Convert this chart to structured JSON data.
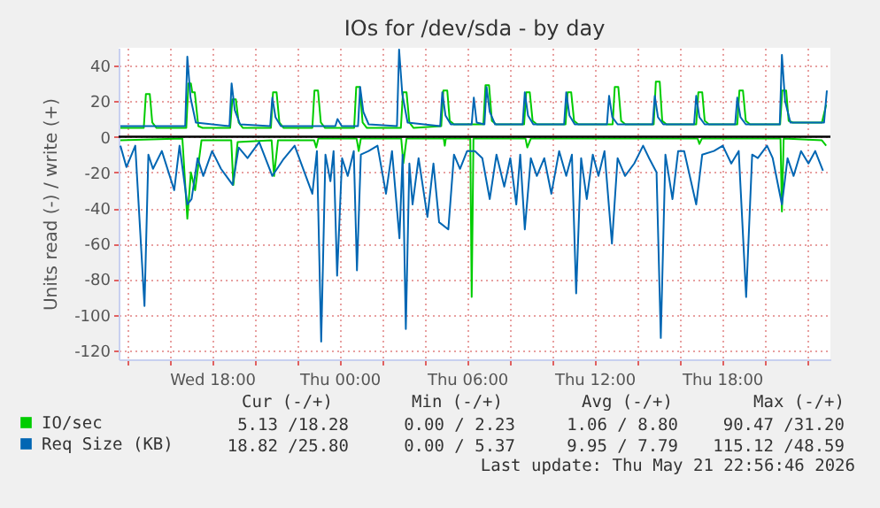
{
  "chart_data": {
    "type": "line",
    "title": "IOs for /dev/sda - by day",
    "ylabel": "Units read (-) / write (+)",
    "xlim": [
      "2026-05-20T13:36",
      "2026-05-21T23:06"
    ],
    "ylim": [
      -125,
      50
    ],
    "xticks": [
      {
        "value": "2026-05-20T14:00",
        "label": null
      },
      {
        "value": "2026-05-20T16:00",
        "label": null
      },
      {
        "value": "2026-05-20T18:00",
        "label": "Wed 18:00"
      },
      {
        "value": "2026-05-20T20:00",
        "label": null
      },
      {
        "value": "2026-05-20T22:00",
        "label": null
      },
      {
        "value": "2026-05-21T00:00",
        "label": "Thu 00:00"
      },
      {
        "value": "2026-05-21T02:00",
        "label": null
      },
      {
        "value": "2026-05-21T04:00",
        "label": null
      },
      {
        "value": "2026-05-21T06:00",
        "label": "Thu 06:00"
      },
      {
        "value": "2026-05-21T08:00",
        "label": null
      },
      {
        "value": "2026-05-21T10:00",
        "label": null
      },
      {
        "value": "2026-05-21T12:00",
        "label": "Thu 12:00"
      },
      {
        "value": "2026-05-21T14:00",
        "label": null
      },
      {
        "value": "2026-05-21T16:00",
        "label": null
      },
      {
        "value": "2026-05-21T18:00",
        "label": "Thu 18:00"
      },
      {
        "value": "2026-05-21T20:00",
        "label": null
      },
      {
        "value": "2026-05-21T22:00",
        "label": null
      }
    ],
    "yticks": [
      -120,
      -100,
      -80,
      -60,
      -40,
      -20,
      0,
      20,
      40
    ],
    "grid": true,
    "legend": "bottom left",
    "ref_lines": [
      {
        "axis": "y",
        "value": 0,
        "color": "#000000"
      }
    ],
    "series": [
      {
        "name": "IO/sec",
        "color": "#00cc00",
        "x": [
          "2026-05-20T13:41",
          "2026-05-20T14:47",
          "2026-05-20T14:53",
          "2026-05-20T15:04",
          "2026-05-20T15:11",
          "2026-05-20T15:23",
          "2026-05-20T16:47",
          "2026-05-20T16:53",
          "2026-05-20T17:00",
          "2026-05-20T17:04",
          "2026-05-20T17:11",
          "2026-05-20T17:21",
          "2026-05-20T17:33",
          "2026-05-20T18:51",
          "2026-05-20T18:57",
          "2026-05-20T19:07",
          "2026-05-20T19:15",
          "2026-05-20T19:27",
          "2026-05-20T20:46",
          "2026-05-20T20:52",
          "2026-05-20T21:02",
          "2026-05-20T21:10",
          "2026-05-20T21:22",
          "2026-05-20T22:43",
          "2026-05-20T22:49",
          "2026-05-20T22:59",
          "2026-05-20T23:07",
          "2026-05-20T23:19",
          "2026-05-21T00:41",
          "2026-05-21T00:47",
          "2026-05-21T00:57",
          "2026-05-21T01:05",
          "2026-05-21T01:17",
          "2026-05-21T02:53",
          "2026-05-21T02:59",
          "2026-05-21T03:09",
          "2026-05-21T03:17",
          "2026-05-21T03:29",
          "2026-05-21T04:47",
          "2026-05-21T04:53",
          "2026-05-21T05:04",
          "2026-05-21T05:11",
          "2026-05-21T05:23",
          "2026-05-21T06:46",
          "2026-05-21T06:52",
          "2026-05-21T07:02",
          "2026-05-21T07:10",
          "2026-05-21T07:22",
          "2026-05-21T08:41",
          "2026-05-21T08:47",
          "2026-05-21T08:57",
          "2026-05-21T09:05",
          "2026-05-21T09:17",
          "2026-05-21T10:38",
          "2026-05-21T10:44",
          "2026-05-21T10:54",
          "2026-05-21T11:02",
          "2026-05-21T11:14",
          "2026-05-21T12:51",
          "2026-05-21T12:57",
          "2026-05-21T13:07",
          "2026-05-21T13:15",
          "2026-05-21T13:27",
          "2026-05-21T14:47",
          "2026-05-21T14:53",
          "2026-05-21T15:04",
          "2026-05-21T15:11",
          "2026-05-21T15:23",
          "2026-05-21T16:47",
          "2026-05-21T16:53",
          "2026-05-21T17:04",
          "2026-05-21T17:11",
          "2026-05-21T17:23",
          "2026-05-21T18:43",
          "2026-05-21T18:49",
          "2026-05-21T18:59",
          "2026-05-21T19:07",
          "2026-05-21T19:19",
          "2026-05-21T20:44",
          "2026-05-21T20:50",
          "2026-05-21T21:01",
          "2026-05-21T21:08",
          "2026-05-21T21:20",
          "2026-05-21T22:42",
          "2026-05-21T22:54"
        ],
        "values": [
          5,
          5,
          24,
          24,
          8,
          5,
          5,
          30,
          30,
          25,
          25,
          6,
          5,
          5,
          21,
          21,
          8,
          5,
          5,
          25,
          25,
          8,
          5,
          5,
          26,
          26,
          8,
          5,
          5,
          28,
          28,
          8,
          5,
          5,
          25,
          25,
          8,
          5,
          6,
          26,
          26,
          9,
          7,
          7,
          29,
          29,
          9,
          7,
          7,
          25,
          25,
          9,
          7,
          7,
          25,
          25,
          9,
          7,
          7,
          28,
          28,
          9,
          7,
          7,
          31,
          31,
          9,
          7,
          7,
          25,
          25,
          9,
          7,
          7,
          26,
          26,
          9,
          7,
          7,
          26,
          26,
          9,
          8,
          8,
          18
        ]
      },
      {
        "color": "#00cc00",
        "x": [
          "2026-05-20T13:41",
          "2026-05-20T16:36",
          "2026-05-20T16:50",
          "2026-05-20T17:00",
          "2026-05-20T17:12",
          "2026-05-20T17:30",
          "2026-05-20T18:54",
          "2026-05-20T19:00",
          "2026-05-20T19:12",
          "2026-05-20T20:48",
          "2026-05-20T20:55",
          "2026-05-20T21:06",
          "2026-05-20T22:48",
          "2026-05-20T22:54",
          "2026-05-20T23:00",
          "2026-05-21T00:48",
          "2026-05-21T00:54",
          "2026-05-21T01:00",
          "2026-05-21T02:54",
          "2026-05-21T03:00",
          "2026-05-21T03:09",
          "2026-05-21T04:54",
          "2026-05-21T04:57",
          "2026-05-21T05:00",
          "2026-05-21T06:09",
          "2026-05-21T06:13",
          "2026-05-21T06:18",
          "2026-05-21T08:45",
          "2026-05-21T08:50",
          "2026-05-21T09:00",
          "2026-05-21T16:51",
          "2026-05-21T16:56",
          "2026-05-21T17:03",
          "2026-05-21T20:45",
          "2026-05-21T20:49",
          "2026-05-21T20:54",
          "2026-05-21T22:42",
          "2026-05-21T22:54"
        ],
        "values": [
          -2,
          -1,
          -46,
          -20,
          -30,
          -2,
          -2,
          -27,
          -3,
          -2,
          -22,
          -2,
          -2,
          -6,
          -1,
          -1,
          -8,
          -1,
          -1,
          -15,
          -1,
          -1,
          -5,
          -1,
          -1,
          -90,
          -1,
          -1,
          -6,
          -1,
          -1,
          -4,
          -1,
          -1,
          -42,
          -1,
          -2,
          -5
        ]
      },
      {
        "name": "Req Size (KB)",
        "color": "#0066b3",
        "x": [
          "2026-05-20T13:41",
          "2026-05-20T14:30",
          "2026-05-20T16:44",
          "2026-05-20T16:50",
          "2026-05-20T16:59",
          "2026-05-20T17:14",
          "2026-05-20T18:49",
          "2026-05-20T18:55",
          "2026-05-20T19:04",
          "2026-05-20T19:19",
          "2026-05-20T20:44",
          "2026-05-20T20:50",
          "2026-05-20T20:59",
          "2026-05-20T21:14",
          "2026-05-20T23:48",
          "2026-05-20T23:54",
          "2026-05-21T00:06",
          "2026-05-21T00:52",
          "2026-05-21T00:58",
          "2026-05-21T01:07",
          "2026-05-21T01:22",
          "2026-05-21T02:42",
          "2026-05-21T02:48",
          "2026-05-21T02:57",
          "2026-05-21T03:12",
          "2026-05-21T04:44",
          "2026-05-21T04:50",
          "2026-05-21T04:59",
          "2026-05-21T05:14",
          "2026-05-21T06:13",
          "2026-05-21T06:19",
          "2026-05-21T06:27",
          "2026-05-21T06:49",
          "2026-05-21T06:55",
          "2026-05-21T07:04",
          "2026-05-21T07:19",
          "2026-05-21T08:37",
          "2026-05-21T08:43",
          "2026-05-21T08:52",
          "2026-05-21T09:07",
          "2026-05-21T10:34",
          "2026-05-21T10:40",
          "2026-05-21T10:49",
          "2026-05-21T11:04",
          "2026-05-21T12:35",
          "2026-05-21T12:41",
          "2026-05-21T12:50",
          "2026-05-21T13:05",
          "2026-05-21T14:44",
          "2026-05-21T14:50",
          "2026-05-21T14:59",
          "2026-05-21T15:14",
          "2026-05-21T16:41",
          "2026-05-21T16:47",
          "2026-05-21T16:56",
          "2026-05-21T17:11",
          "2026-05-21T18:37",
          "2026-05-21T18:43",
          "2026-05-21T18:52",
          "2026-05-21T19:07",
          "2026-05-21T20:43",
          "2026-05-21T20:49",
          "2026-05-21T20:58",
          "2026-05-21T21:13",
          "2026-05-21T22:48",
          "2026-05-21T22:56"
        ],
        "values": [
          6,
          6,
          6,
          45,
          22,
          8,
          6,
          30,
          15,
          7,
          6,
          22,
          11,
          6,
          6,
          10,
          6,
          6,
          28,
          14,
          7,
          6,
          49,
          24,
          8,
          6,
          25,
          12,
          7,
          7,
          22,
          8,
          7,
          28,
          14,
          7,
          7,
          25,
          12,
          7,
          7,
          25,
          12,
          7,
          7,
          23,
          11,
          7,
          7,
          23,
          11,
          7,
          7,
          23,
          11,
          7,
          7,
          22,
          11,
          7,
          7,
          46,
          20,
          8,
          8,
          26
        ]
      },
      {
        "color": "#0066b3",
        "x": [
          "2026-05-20T13:41",
          "2026-05-20T13:58",
          "2026-05-20T14:23",
          "2026-05-20T14:49",
          "2026-05-20T15:00",
          "2026-05-20T15:13",
          "2026-05-20T15:38",
          "2026-05-20T16:13",
          "2026-05-20T16:28",
          "2026-05-20T16:50",
          "2026-05-20T17:02",
          "2026-05-20T17:19",
          "2026-05-20T17:35",
          "2026-05-20T18:00",
          "2026-05-20T18:25",
          "2026-05-20T18:58",
          "2026-05-20T19:15",
          "2026-05-20T19:40",
          "2026-05-20T20:13",
          "2026-05-20T20:50",
          "2026-05-20T21:20",
          "2026-05-20T21:53",
          "2026-05-20T22:43",
          "2026-05-20T22:56",
          "2026-05-20T23:08",
          "2026-05-20T23:20",
          "2026-05-20T23:34",
          "2026-05-20T23:43",
          "2026-05-20T23:53",
          "2026-05-21T00:07",
          "2026-05-21T00:23",
          "2026-05-21T00:40",
          "2026-05-21T00:49",
          "2026-05-21T01:00",
          "2026-05-21T01:22",
          "2026-05-21T01:47",
          "2026-05-21T02:11",
          "2026-05-21T02:28",
          "2026-05-21T02:49",
          "2026-05-21T02:58",
          "2026-05-21T03:07",
          "2026-05-21T03:17",
          "2026-05-21T03:26",
          "2026-05-21T03:43",
          "2026-05-21T04:08",
          "2026-05-21T04:25",
          "2026-05-21T04:41",
          "2026-05-21T05:07",
          "2026-05-21T05:23",
          "2026-05-21T05:40",
          "2026-05-21T06:00",
          "2026-05-21T06:22",
          "2026-05-21T06:43",
          "2026-05-21T07:04",
          "2026-05-21T07:23",
          "2026-05-21T07:45",
          "2026-05-21T08:02",
          "2026-05-21T08:19",
          "2026-05-21T08:30",
          "2026-05-21T08:43",
          "2026-05-21T09:00",
          "2026-05-21T09:17",
          "2026-05-21T09:38",
          "2026-05-21T09:58",
          "2026-05-21T10:20",
          "2026-05-21T10:40",
          "2026-05-21T10:56",
          "2026-05-21T11:08",
          "2026-05-21T11:22",
          "2026-05-21T11:38",
          "2026-05-21T11:55",
          "2026-05-21T12:11",
          "2026-05-21T12:28",
          "2026-05-21T12:49",
          "2026-05-21T13:05",
          "2026-05-21T13:26",
          "2026-05-21T13:52",
          "2026-05-21T14:17",
          "2026-05-21T14:34",
          "2026-05-21T14:55",
          "2026-05-21T15:07",
          "2026-05-21T15:20",
          "2026-05-21T15:40",
          "2026-05-21T15:56",
          "2026-05-21T16:13",
          "2026-05-21T16:47",
          "2026-05-21T17:04",
          "2026-05-21T17:37",
          "2026-05-21T18:02",
          "2026-05-21T18:26",
          "2026-05-21T18:47",
          "2026-05-21T19:08",
          "2026-05-21T19:25",
          "2026-05-21T19:41",
          "2026-05-21T20:07",
          "2026-05-21T20:23",
          "2026-05-21T20:49",
          "2026-05-21T21:05",
          "2026-05-21T21:22",
          "2026-05-21T21:43",
          "2026-05-21T22:04",
          "2026-05-21T22:23",
          "2026-05-21T22:45"
        ],
        "values": [
          -5,
          -17,
          -5,
          -95,
          -10,
          -18,
          -8,
          -30,
          -5,
          -38,
          -35,
          -12,
          -22,
          -8,
          -18,
          -27,
          -6,
          -12,
          -3,
          -22,
          -13,
          -5,
          -32,
          -8,
          -115,
          -10,
          -25,
          -8,
          -78,
          -12,
          -22,
          -8,
          -75,
          -10,
          -8,
          -5,
          -32,
          -8,
          -57,
          -10,
          -108,
          -15,
          -38,
          -12,
          -45,
          -15,
          -48,
          -52,
          -10,
          -18,
          -8,
          -8,
          -12,
          -35,
          -10,
          -28,
          -12,
          -38,
          -10,
          -52,
          -12,
          -22,
          -12,
          -32,
          -8,
          -22,
          -10,
          -88,
          -12,
          -35,
          -10,
          -22,
          -8,
          -60,
          -12,
          -22,
          -15,
          -5,
          -12,
          -20,
          -113,
          -10,
          -35,
          -8,
          -8,
          -38,
          -10,
          -8,
          -5,
          -15,
          -8,
          -90,
          -10,
          -12,
          -5,
          -12,
          -38,
          -12,
          -22,
          -8,
          -15,
          -8,
          -19
        ]
      }
    ],
    "annotations": [
      "Cur (-/+)",
      "Min (-/+)",
      "Avg (-/+)",
      "Max (-/+)",
      "5.13 /18.28",
      "0.00 / 2.23",
      "1.06 / 8.80",
      "90.47 /31.20",
      "18.82 /25.80",
      "0.00 / 5.37",
      "9.95 / 7.79",
      "115.12 /48.59",
      "Last update: Thu May 21 22:56:46 2026"
    ]
  }
}
